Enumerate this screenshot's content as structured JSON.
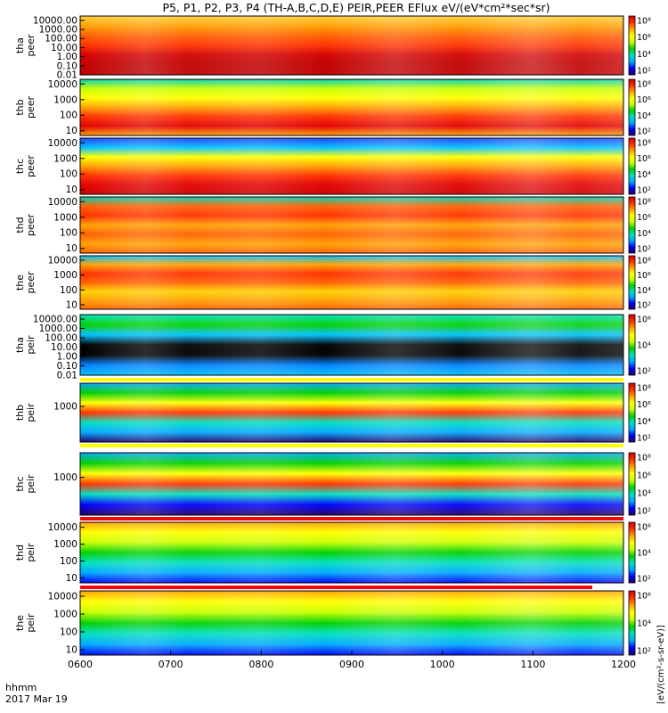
{
  "title": "P5, P1, P2, P3, P4 (TH-A,B,C,D,E) PEIR,PEER EFlux eV/(eV*cm²*sec*sr)",
  "colorbar_unit": "[eV/(cm²-s-sr-eV)]",
  "time_axis": {
    "ticks": [
      "0600",
      "0700",
      "0800",
      "0900",
      "1000",
      "1100",
      "1200"
    ],
    "label": "hhmm",
    "date": "2017 Mar 19"
  },
  "colors": {
    "scale": [
      "#220066",
      "#0000ff",
      "#00a8ff",
      "#00e0c0",
      "#00d000",
      "#c8ff00",
      "#ffff00",
      "#ffa000",
      "#ff3000",
      "#d00000"
    ],
    "flag_yellow": "#ffff00",
    "flag_red": "#ff0000",
    "frame": "#000000"
  },
  "chart_data": [
    {
      "type": "heatmap",
      "probe": "tha",
      "species": "peer",
      "ylabel_probe": "tha",
      "ylabel_species": "peer",
      "yscale": "log",
      "ylim": [
        0.01,
        30000
      ],
      "yticks": [
        "10000.00",
        "1000.00",
        "100.00",
        "10.00",
        "1.00",
        "0.10",
        "0.01"
      ],
      "cbar_ticks": [
        "10⁸",
        "10⁶",
        "10⁴",
        "10²"
      ]
    },
    {
      "type": "heatmap",
      "probe": "thb",
      "species": "peer",
      "ylabel_probe": "thb",
      "ylabel_species": "peer",
      "yscale": "log",
      "ylim": [
        5,
        20000
      ],
      "yticks": [
        "10000",
        "1000",
        "100",
        "10"
      ],
      "cbar_ticks": [
        "10⁸",
        "10⁶",
        "10⁴",
        "10²"
      ]
    },
    {
      "type": "heatmap",
      "probe": "thc",
      "species": "peer",
      "ylabel_probe": "thc",
      "ylabel_species": "peer",
      "yscale": "log",
      "ylim": [
        5,
        20000
      ],
      "yticks": [
        "10000",
        "1000",
        "100",
        "10"
      ],
      "cbar_ticks": [
        "10⁸",
        "10⁶",
        "10⁴",
        "10²"
      ]
    },
    {
      "type": "heatmap",
      "probe": "thd",
      "species": "peer",
      "ylabel_probe": "thd",
      "ylabel_species": "peer",
      "yscale": "log",
      "ylim": [
        5,
        20000
      ],
      "yticks": [
        "10000",
        "1000",
        "100",
        "10"
      ],
      "cbar_ticks": [
        "10⁸",
        "10⁶",
        "10⁴",
        "10²"
      ]
    },
    {
      "type": "heatmap",
      "probe": "the",
      "species": "peer",
      "ylabel_probe": "the",
      "ylabel_species": "peer",
      "yscale": "log",
      "ylim": [
        5,
        20000
      ],
      "yticks": [
        "10000",
        "1000",
        "100",
        "10"
      ],
      "cbar_ticks": [
        "10⁸",
        "10⁶",
        "10⁴",
        "10²"
      ]
    },
    {
      "type": "heatmap",
      "probe": "tha",
      "species": "peir",
      "ylabel_probe": "tha",
      "ylabel_species": "peir",
      "yscale": "log",
      "ylim": [
        0.01,
        30000
      ],
      "yticks": [
        "10000.00",
        "1000.00",
        "100.00",
        "10.00",
        "1.00",
        "0.10",
        "0.01"
      ],
      "cbar_ticks": [
        "10⁶",
        "10⁴",
        "10²"
      ]
    },
    {
      "type": "heatmap",
      "probe": "thb",
      "species": "peir",
      "ylabel_probe": "thb",
      "ylabel_species": "peir",
      "yscale": "log",
      "ylim": [
        10,
        20000
      ],
      "yticks": [
        "1000"
      ],
      "cbar_ticks": [
        "10⁸",
        "10⁶",
        "10⁴",
        "10²"
      ]
    },
    {
      "type": "heatmap",
      "probe": "thc",
      "species": "peir",
      "ylabel_probe": "thc",
      "ylabel_species": "peir",
      "yscale": "log",
      "ylim": [
        10,
        20000
      ],
      "yticks": [
        "1000"
      ],
      "cbar_ticks": [
        "10⁸",
        "10⁶",
        "10⁴",
        "10²"
      ]
    },
    {
      "type": "heatmap",
      "probe": "thd",
      "species": "peir",
      "ylabel_probe": "thd",
      "ylabel_species": "peir",
      "yscale": "log",
      "ylim": [
        5,
        20000
      ],
      "yticks": [
        "10000",
        "1000",
        "100",
        "10"
      ],
      "cbar_ticks": [
        "10⁶",
        "10⁴",
        "10²"
      ]
    },
    {
      "type": "heatmap",
      "probe": "the",
      "species": "peir",
      "ylabel_probe": "the",
      "ylabel_species": "peir",
      "yscale": "log",
      "ylim": [
        5,
        20000
      ],
      "yticks": [
        "10000",
        "1000",
        "100",
        "10"
      ],
      "cbar_ticks": [
        "10⁶",
        "10⁴",
        "10²"
      ]
    }
  ]
}
